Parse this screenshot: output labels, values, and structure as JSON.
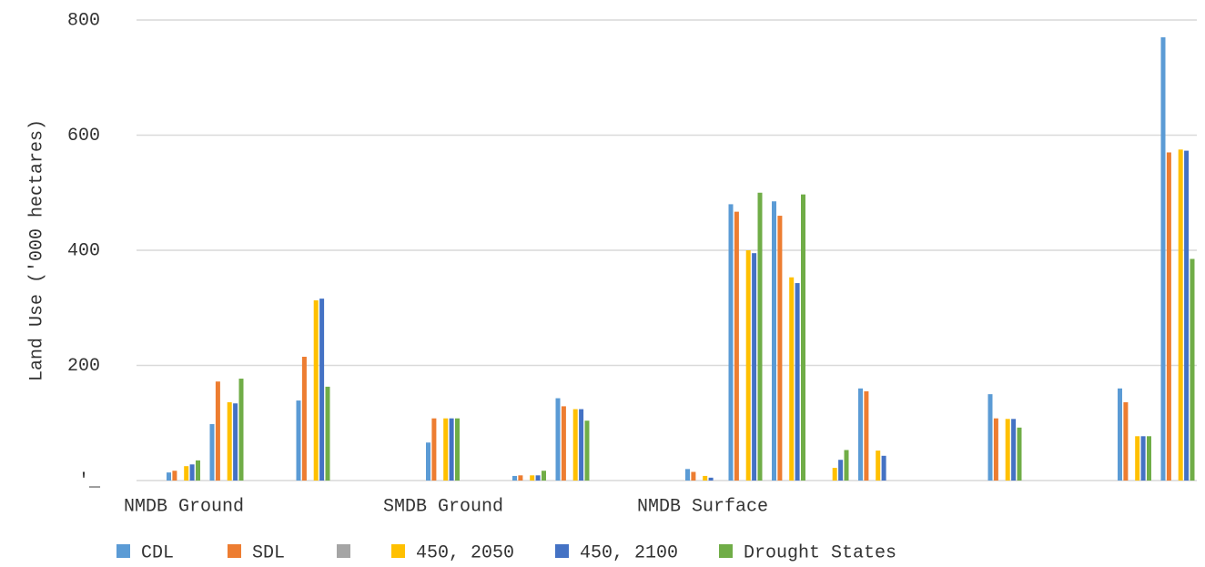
{
  "chart_data": {
    "type": "bar",
    "y_label": "Land Use ('000 hectares)",
    "categories": [
      "NMDB Ground",
      null,
      null,
      null,
      null,
      null,
      "SMDB Ground",
      null,
      null,
      null,
      null,
      null,
      "NMDB Surface",
      null,
      null,
      null,
      null,
      null,
      null,
      null,
      null,
      null,
      null,
      null
    ],
    "series": [
      {
        "name": "CDL",
        "color": "#5b9bd5",
        "values": [
          14,
          98,
          null,
          139,
          null,
          null,
          66,
          null,
          8,
          143,
          null,
          null,
          20,
          480,
          485,
          null,
          160,
          null,
          null,
          150,
          null,
          null,
          160,
          770
        ]
      },
      {
        "name": "SDL",
        "color": "#ed7d31",
        "values": [
          17,
          172,
          null,
          215,
          null,
          null,
          108,
          null,
          9,
          129,
          null,
          null,
          15,
          467,
          460,
          null,
          155,
          null,
          null,
          108,
          null,
          null,
          136,
          570
        ]
      },
      {
        "name": null,
        "color": "#a5a5a5",
        "values": [
          null,
          null,
          null,
          null,
          null,
          null,
          null,
          null,
          null,
          null,
          null,
          null,
          null,
          null,
          null,
          null,
          null,
          null,
          null,
          null,
          null,
          null,
          null,
          null
        ]
      },
      {
        "name": "450, 2050",
        "color": "#ffc000",
        "values": [
          25,
          136,
          null,
          313,
          null,
          null,
          108,
          null,
          9,
          124,
          null,
          null,
          8,
          400,
          353,
          22,
          52,
          null,
          null,
          107,
          null,
          null,
          77,
          575
        ]
      },
      {
        "name": "450, 2100",
        "color": "#4472c4",
        "values": [
          28,
          134,
          null,
          316,
          null,
          null,
          108,
          null,
          9,
          124,
          null,
          null,
          5,
          395,
          343,
          36,
          43,
          null,
          null,
          107,
          null,
          null,
          77,
          573
        ]
      },
      {
        "name": "Drought States",
        "color": "#70ad47",
        "values": [
          35,
          177,
          null,
          163,
          null,
          null,
          108,
          null,
          17,
          104,
          null,
          null,
          null,
          500,
          497,
          53,
          null,
          null,
          null,
          92,
          null,
          null,
          77,
          385
        ]
      }
    ],
    "ylim": [
      0,
      800
    ],
    "yticks": [
      {
        "value": 0,
        "label": "'_"
      },
      200,
      400,
      600,
      800
    ],
    "grid": true
  }
}
